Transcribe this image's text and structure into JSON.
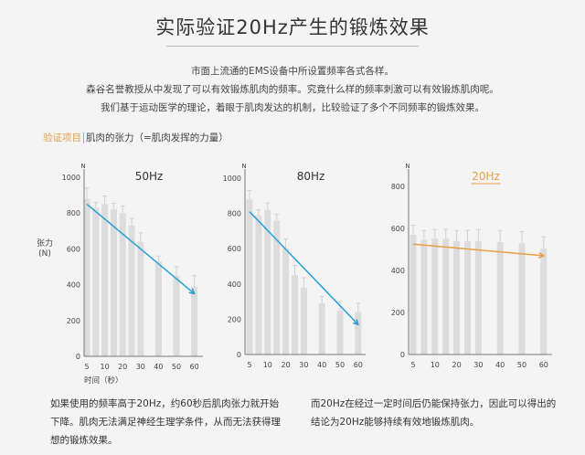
{
  "title": "实际验证20Hz产生的锻炼效果",
  "intro": [
    "市面上流通的EMS设备中所设置频率各式各样。",
    "森谷名誉教授从中发现了可以有效锻炼肌肉的频率。究竟什么样的频率刺激可以有效锻炼肌肉呢。",
    "我们基于运动医学的理论，着眼于肌肉发达的机制，比较验证了多个不同频率的锻炼效果。"
  ],
  "verify": {
    "tag": "验证项目",
    "text": "肌肉的张力（=肌肉发挥的力量）"
  },
  "y_axis_name": [
    "张力",
    "(N)"
  ],
  "x_axis_name": "时间（秒）",
  "footnotes": {
    "left": "如果使用的频率高于20Hz，约60秒后肌肉张力就开始下降。肌肉无法满足神经生理学条件，从而无法获得理想的锻炼效果。",
    "right": "而20Hz在经过一定时间后仍能保持张力，因此可以得出的结论为20Hz能够持续有效地锻炼肌肉。"
  },
  "colors": {
    "bar": "#dcdcdc",
    "blue_arrow": "#2a9fd6",
    "orange_arrow": "#e8a040",
    "axis": "#777"
  },
  "chart_data": [
    {
      "type": "bar",
      "title": "50Hz",
      "xlabel": "时间（秒）",
      "ylabel": "张力 (N)",
      "y_unit": "N",
      "ylim": [
        0,
        1000
      ],
      "yticks": [
        0,
        200,
        400,
        600,
        800,
        1000
      ],
      "x_tick_labels": [
        "5",
        "10",
        "20",
        "30",
        "40",
        "50",
        "60"
      ],
      "categories": [
        "5",
        "7.5",
        "10",
        "15",
        "20",
        "25",
        "30",
        "40",
        "50",
        "60"
      ],
      "values": [
        880,
        830,
        850,
        820,
        800,
        730,
        640,
        530,
        450,
        390
      ],
      "errors": [
        60,
        30,
        45,
        35,
        40,
        40,
        50,
        30,
        50,
        60
      ],
      "trend": {
        "from": 850,
        "to": 350,
        "color": "#2a9fd6"
      }
    },
    {
      "type": "bar",
      "title": "80Hz",
      "xlabel": "时间（秒）",
      "ylabel": "张力 (N)",
      "y_unit": "N",
      "ylim": [
        0,
        1000
      ],
      "yticks": [
        0,
        200,
        400,
        600,
        800,
        1000
      ],
      "x_tick_labels": [
        "5",
        "10",
        "20",
        "30",
        "40",
        "50",
        "60"
      ],
      "categories": [
        "5",
        "7.5",
        "10",
        "15",
        "20",
        "25",
        "30",
        "40",
        "50",
        "60"
      ],
      "values": [
        880,
        790,
        820,
        760,
        600,
        450,
        380,
        290,
        250,
        240
      ],
      "errors": [
        50,
        30,
        40,
        35,
        55,
        55,
        55,
        40,
        50,
        50
      ],
      "trend": {
        "from": 810,
        "to": 170,
        "color": "#2a9fd6"
      }
    },
    {
      "type": "bar",
      "title": "20Hz",
      "xlabel": "时间（秒）",
      "ylabel": "张力 (N)",
      "y_unit": "N",
      "ylim": [
        0,
        800
      ],
      "yticks": [
        0,
        200,
        400,
        600,
        800
      ],
      "x_tick_labels": [
        "5",
        "10",
        "20",
        "30",
        "40",
        "50",
        "60"
      ],
      "categories": [
        "5",
        "7.5",
        "10",
        "15",
        "20",
        "25",
        "30",
        "40",
        "50",
        "60"
      ],
      "values": [
        570,
        545,
        550,
        550,
        540,
        540,
        540,
        535,
        530,
        505
      ],
      "errors": [
        45,
        45,
        45,
        45,
        50,
        50,
        55,
        55,
        55,
        55
      ],
      "trend": {
        "from": 525,
        "to": 470,
        "color": "#e8a040"
      },
      "highlight": true
    }
  ]
}
